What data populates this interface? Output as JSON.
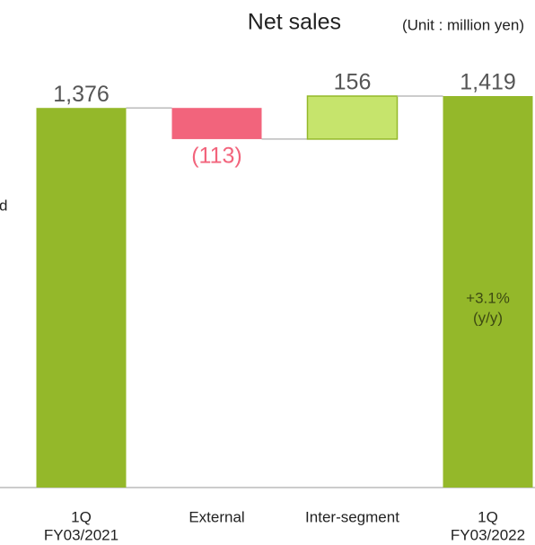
{
  "chart_data": {
    "type": "waterfall",
    "title": "Net sales",
    "subtitle": "(Unit : million yen)",
    "side_label": "d",
    "categories": [
      [
        "1Q",
        "FY03/2021"
      ],
      [
        "External"
      ],
      [
        "Inter-segment"
      ],
      [
        "1Q",
        "FY03/2022"
      ]
    ],
    "kinds": [
      "total",
      "delta",
      "delta",
      "total"
    ],
    "values": [
      1376,
      -113,
      156,
      1419
    ],
    "value_labels": [
      "1,376",
      "(113)",
      "156",
      "1,419"
    ],
    "colors": {
      "total": "#94b82a",
      "increase": "#c6e46c",
      "decrease": "#f2647c"
    },
    "annotation": [
      "+3.1%",
      "(y/y)"
    ]
  }
}
